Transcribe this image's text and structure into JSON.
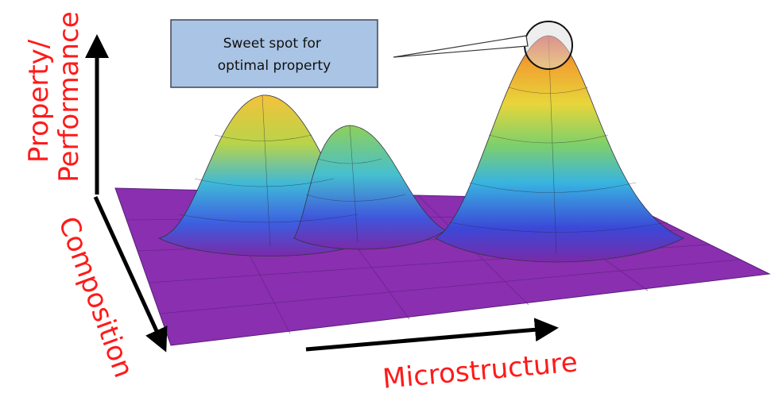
{
  "callout": {
    "lines": [
      "Sweet spot for",
      "optimal property"
    ]
  },
  "axes": {
    "y_label_lines": [
      "Property/",
      "Performance"
    ],
    "z_label": "Composition",
    "x_label": "Microstructure"
  }
}
